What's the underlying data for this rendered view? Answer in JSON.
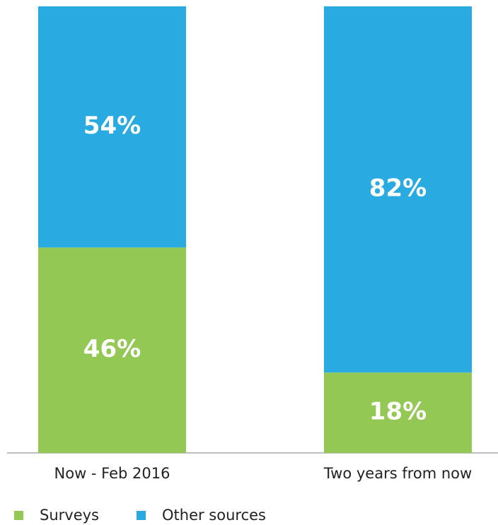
{
  "chart_data": {
    "type": "stacked_bar",
    "categories": [
      "Now - Feb 2016",
      "Two years from now"
    ],
    "series": [
      {
        "name": "Surveys",
        "color": "#92c853",
        "values": [
          46,
          18
        ],
        "value_labels": [
          "46%",
          "18%"
        ]
      },
      {
        "name": "Other sources",
        "color": "#29abe2",
        "values": [
          54,
          82
        ],
        "value_labels": [
          "54%",
          "82%"
        ]
      }
    ],
    "ylim": [
      0,
      100
    ]
  }
}
